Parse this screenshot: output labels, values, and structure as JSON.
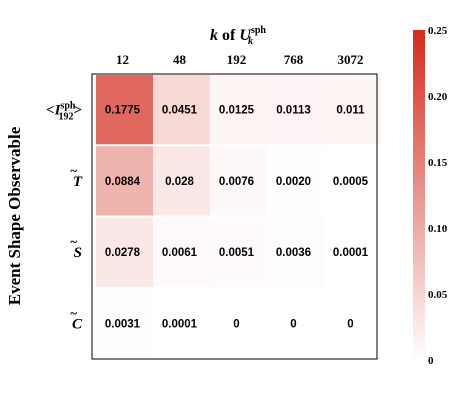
{
  "chart_data": {
    "type": "heatmap",
    "x_title": {
      "prefix": "k",
      "middle": " of ",
      "script": "U",
      "sup": "sph",
      "sub": "k"
    },
    "y_title": "Event Shape Observable",
    "x_categories": [
      "12",
      "48",
      "192",
      "768",
      "3072"
    ],
    "y_categories": [
      {
        "pre": "<",
        "sym": "I",
        "sup": "sph",
        "sub": "192",
        "post": ">"
      },
      {
        "pre": "",
        "sym": "T",
        "tilde": "~",
        "sup": "",
        "sub": "",
        "post": ""
      },
      {
        "pre": "",
        "sym": "S",
        "tilde": "~",
        "sup": "",
        "sub": "",
        "post": ""
      },
      {
        "pre": "",
        "sym": "C",
        "tilde": "~",
        "sup": "",
        "sub": "",
        "post": ""
      }
    ],
    "values": [
      [
        0.1775,
        0.0451,
        0.0125,
        0.0113,
        0.011
      ],
      [
        0.0884,
        0.028,
        0.0076,
        0.002,
        0.0005
      ],
      [
        0.0278,
        0.0061,
        0.0051,
        0.0036,
        0.0001
      ],
      [
        0.0031,
        0.0001,
        0,
        0,
        0
      ]
    ],
    "cell_labels": [
      [
        "0.1775",
        "0.0451",
        "0.0125",
        "0.0113",
        "0.011"
      ],
      [
        "0.0884",
        "0.028",
        "0.0076",
        "0.0020",
        "0.0005"
      ],
      [
        "0.0278",
        "0.0061",
        "0.0051",
        "0.0036",
        "0.0001"
      ],
      [
        "0.0031",
        "0.0001",
        "0",
        "0",
        "0"
      ]
    ],
    "color_range": [
      0,
      0.25
    ],
    "colorbar_ticks": [
      {
        "value": 0.25,
        "label": "0.25"
      },
      {
        "value": 0.2,
        "label": "0.20"
      },
      {
        "value": 0.15,
        "label": "0.15"
      },
      {
        "value": 0.1,
        "label": "0.10"
      },
      {
        "value": 0.05,
        "label": "0.05"
      },
      {
        "value": 0,
        "label": "0"
      }
    ],
    "colormap": {
      "low": "#ffffff",
      "high": "#d52b1e"
    },
    "grid": false,
    "colorbar_position": "right"
  }
}
